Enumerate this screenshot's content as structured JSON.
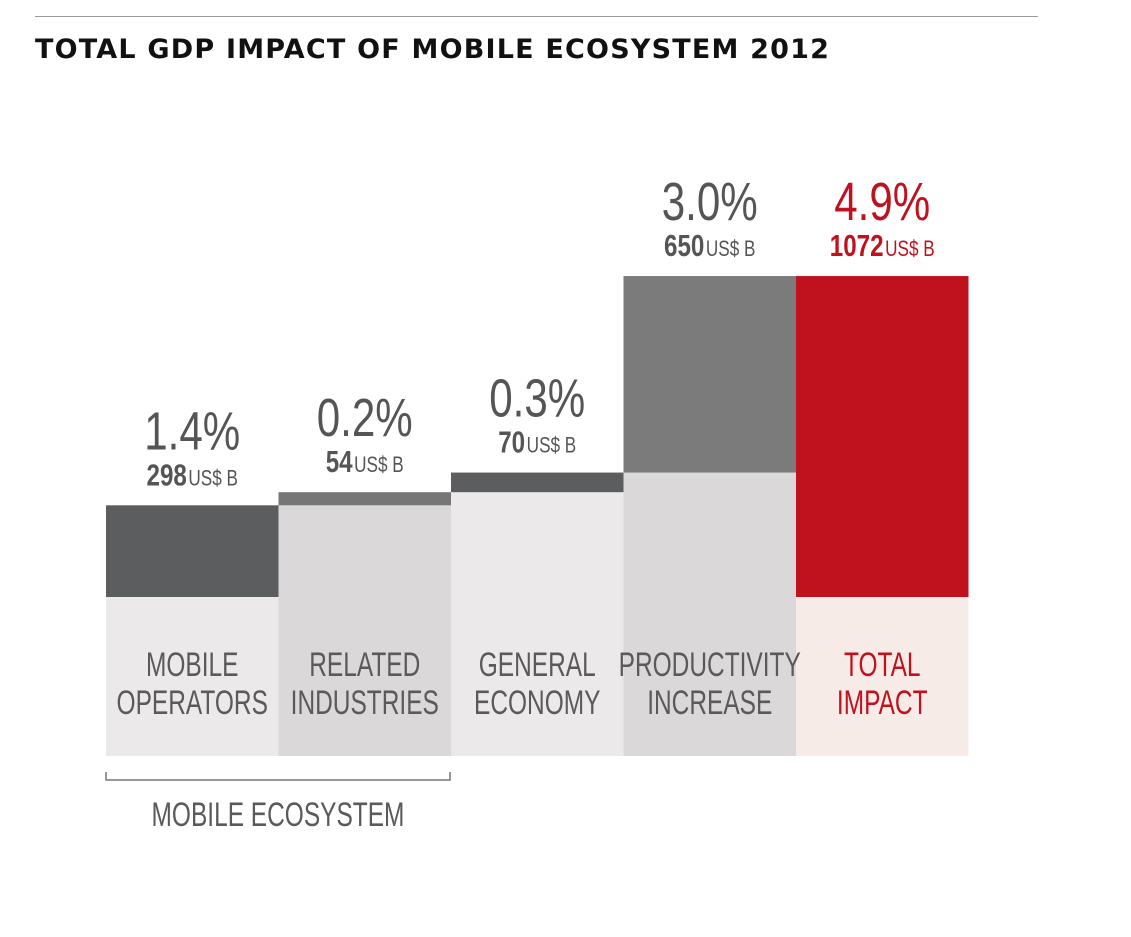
{
  "title": "TOTAL GDP IMPACT OF MOBILE ECOSYSTEM 2012",
  "unit_label": "US$ B",
  "group_label": "MOBILE ECOSYSTEM",
  "colors": {
    "dark_bar": "#5c5d5e",
    "mid_bar": "#777677",
    "step_grey": "#7b7b7c",
    "light_panel": "#ebe9ea",
    "mid_panel": "#dad8d9",
    "total_red": "#c0111f",
    "total_panel": "#f7ebe7",
    "label_grey": "#5a5a5a",
    "value_grey": "#555555",
    "red_text": "#c0111f"
  },
  "chart_data": {
    "type": "bar",
    "subtype": "waterfall",
    "title": "TOTAL GDP IMPACT OF MOBILE ECOSYSTEM 2012",
    "categories": [
      [
        "MOBILE",
        "OPERATORS"
      ],
      [
        "RELATED",
        "INDUSTRIES"
      ],
      [
        "GENERAL",
        "ECONOMY"
      ],
      [
        "PRODUCTIVITY",
        "INCREASE"
      ],
      [
        "TOTAL",
        "IMPACT"
      ]
    ],
    "percent_labels": [
      "1.4%",
      "0.2%",
      "0.3%",
      "3.0%",
      "4.9%"
    ],
    "usd_values": [
      298,
      54,
      70,
      650,
      1072
    ],
    "percent_values": [
      1.4,
      0.2,
      0.3,
      3.0,
      4.9
    ],
    "is_total": [
      false,
      false,
      false,
      false,
      true
    ],
    "group": {
      "label": "MOBILE ECOSYSTEM",
      "from": 0,
      "to": 1
    },
    "grid": false,
    "legend": "none"
  }
}
